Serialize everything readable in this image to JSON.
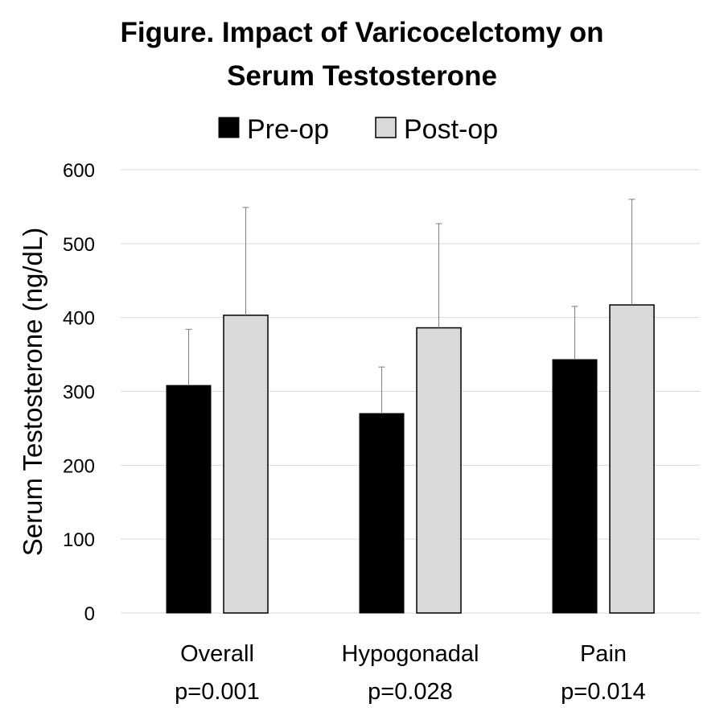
{
  "chart_data": {
    "type": "bar",
    "title": [
      "Figure. Impact of Varicocelctomy on",
      "Serum Testosterone"
    ],
    "ylabel": "Serum Testosterone (ng/dL)",
    "xlabel": "",
    "ylim": [
      0,
      600
    ],
    "yticks": [
      0,
      100,
      200,
      300,
      400,
      500,
      600
    ],
    "grid": true,
    "legend_position": "top-center",
    "categories": [
      {
        "name": "Overall",
        "p": "p=0.001"
      },
      {
        "name": "Hypogonadal",
        "p": "p=0.028"
      },
      {
        "name": "Pain",
        "p": "p=0.014"
      }
    ],
    "series": [
      {
        "name": "Pre-op",
        "color": "#000000",
        "values": [
          308,
          270,
          343
        ],
        "error_upper": [
          384,
          333,
          415
        ]
      },
      {
        "name": "Post-op",
        "color": "#d9d9d9",
        "values": [
          403,
          386,
          417
        ],
        "error_upper": [
          549,
          527,
          560
        ]
      }
    ]
  }
}
